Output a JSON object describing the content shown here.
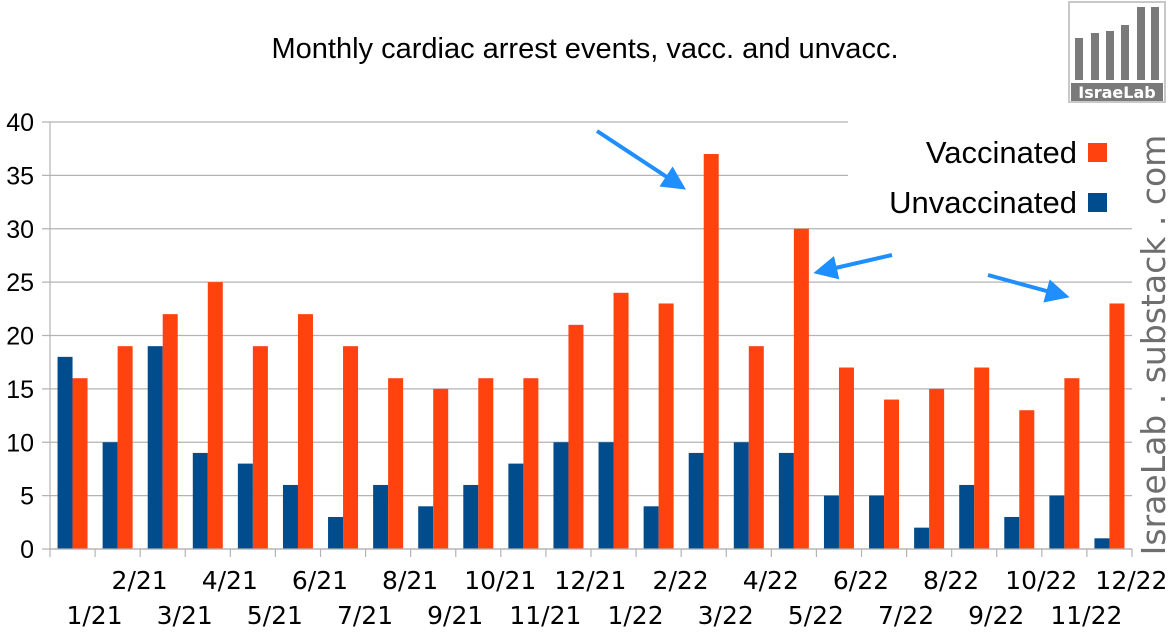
{
  "chart_data": {
    "type": "bar",
    "title": "Monthly cardiac arrest events, vacc. and unvacc.",
    "xlabel": "",
    "ylabel": "",
    "ylim": [
      0,
      40
    ],
    "yticks": [
      "0",
      "5",
      "10",
      "15",
      "20",
      "25",
      "30",
      "35",
      "40"
    ],
    "grid": true,
    "legend_position": "top-right",
    "categories": [
      "1/21",
      "2/21",
      "3/21",
      "4/21",
      "5/21",
      "6/21",
      "7/21",
      "8/21",
      "9/21",
      "10/21",
      "11/21",
      "12/21",
      "1/22",
      "2/22",
      "3/22",
      "4/22",
      "5/22",
      "6/22",
      "7/22",
      "8/22",
      "9/22",
      "10/22",
      "11/22",
      "12/22"
    ],
    "series": [
      {
        "name": "Unvaccinated",
        "color": "#004c8c",
        "values": [
          18,
          10,
          19,
          9,
          8,
          6,
          3,
          6,
          4,
          6,
          8,
          10,
          10,
          4,
          9,
          10,
          9,
          5,
          5,
          2,
          6,
          3,
          5,
          1
        ]
      },
      {
        "name": "Vaccinated",
        "color": "#ff420e",
        "values": [
          16,
          19,
          22,
          25,
          19,
          22,
          19,
          16,
          15,
          16,
          16,
          21,
          24,
          23,
          37,
          19,
          30,
          17,
          14,
          15,
          17,
          13,
          16,
          23
        ]
      }
    ],
    "legend": [
      "Vaccinated",
      "Unvaccinated"
    ],
    "annotations": [
      {
        "type": "arrow",
        "color": "#1f8fff",
        "points_to": "3/22"
      },
      {
        "type": "arrow",
        "color": "#1f8fff",
        "points_to": "5/22"
      },
      {
        "type": "arrow",
        "color": "#1f8fff",
        "points_to": "12/22"
      }
    ]
  },
  "logo": {
    "text": "IsraeLab"
  },
  "watermark": "IsraeLab . substack . com"
}
